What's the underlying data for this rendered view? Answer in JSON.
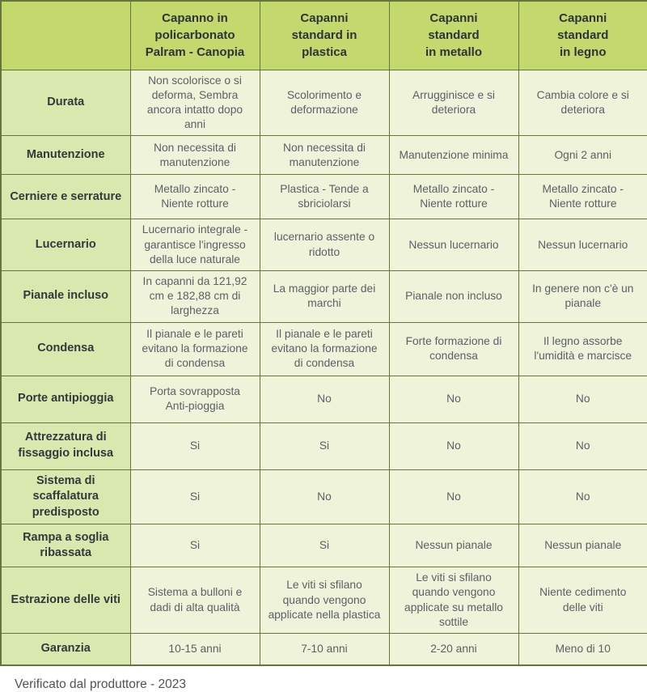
{
  "colors": {
    "header_bg": "#c3d96e",
    "label_bg": "#d9e8ae",
    "cell_bg": "#eef3da",
    "border": "#66753c",
    "header_text": "#2e3338",
    "label_text": "#33383d",
    "cell_text": "#5c6166",
    "footer_text": "#4e5358",
    "page_bg": "#ffffff"
  },
  "table": {
    "columns": [
      "",
      "Capanno in\npolicarbonato\nPalram - Canopia",
      "Capanni\nstandard in\nplastica",
      "Capanni\nstandard\nin metallo",
      "Capanni\nstandard\nin legno"
    ],
    "rows": [
      {
        "label": "Durata",
        "values": [
          "Non scolorisce o si deforma, Sembra ancora intatto dopo anni",
          "Scolorimento e deformazione",
          "Arrugginisce e si deteriora",
          "Cambia colore e si deteriora"
        ]
      },
      {
        "label": "Manutenzione",
        "values": [
          "Non necessita di manutenzione",
          "Non necessita di manutenzione",
          "Manutenzione minima",
          "Ogni 2 anni"
        ]
      },
      {
        "label": "Cerniere e serrature",
        "values": [
          "Metallo zincato - Niente rotture",
          "Plastica - Tende a sbriciolarsi",
          "Metallo zincato - Niente rotture",
          "Metallo zincato - Niente rotture"
        ]
      },
      {
        "label": "Lucernario",
        "values": [
          "Lucernario integrale - garantisce l'ingresso della luce naturale",
          "lucernario assente o ridotto",
          "Nessun lucernario",
          "Nessun lucernario"
        ]
      },
      {
        "label": "Pianale incluso",
        "values": [
          "In capanni da 121,92 cm e 182,88 cm di larghezza",
          "La maggior parte dei marchi",
          "Pianale non incluso",
          "In genere non c'è un pianale"
        ]
      },
      {
        "label": "Condensa",
        "values": [
          "Il pianale e le pareti evitano la formazione di condensa",
          "Il pianale e le pareti evitano la formazione di condensa",
          "Forte formazione di condensa",
          "Il legno assorbe l'umidità e marcisce"
        ]
      },
      {
        "label": "Porte antipioggia",
        "values": [
          "Porta sovrapposta Anti-pioggia",
          "No",
          "No",
          "No"
        ]
      },
      {
        "label": "Attrezzatura di fissaggio inclusa",
        "values": [
          "Si",
          "Si",
          "No",
          "No"
        ]
      },
      {
        "label": "Sistema di scaffalatura predisposto",
        "values": [
          "Si",
          "No",
          "No",
          "No"
        ]
      },
      {
        "label": "Rampa a soglia ribassata",
        "values": [
          "Si",
          "Si",
          "Nessun pianale",
          "Nessun pianale"
        ]
      },
      {
        "label": "Estrazione delle viti",
        "values": [
          "Sistema a bulloni e dadi di alta qualità",
          "Le viti si sfilano quando vengono applicate nella plastica",
          "Le viti si sfilano quando vengono applicate su metallo sottile",
          "Niente cedimento delle viti"
        ]
      },
      {
        "label": "Garanzia",
        "values": [
          "10-15 anni",
          "7-10 anni",
          "2-20 anni",
          "Meno di 10"
        ]
      }
    ]
  },
  "footer": {
    "note": "Verificato dal produttore - 2023"
  }
}
